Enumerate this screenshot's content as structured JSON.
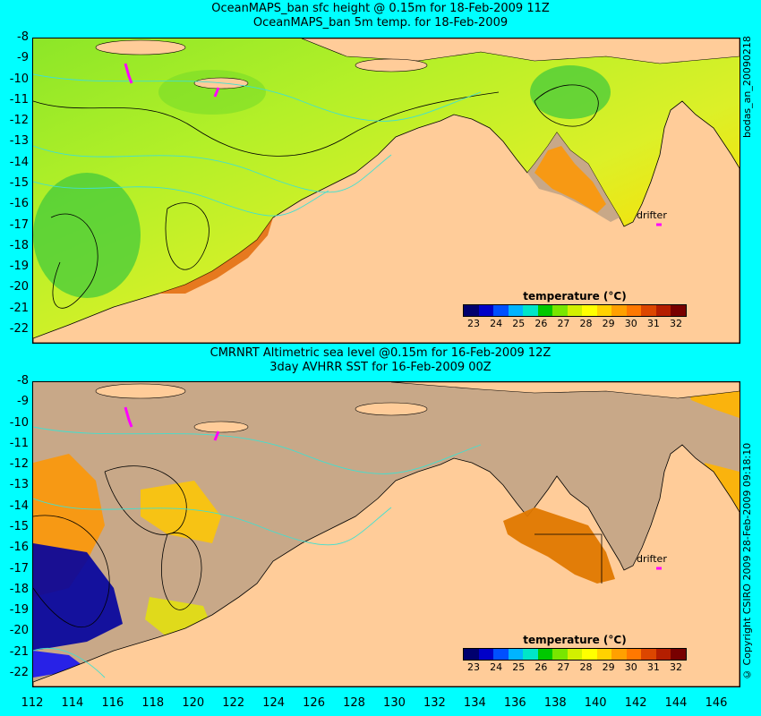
{
  "top_title_1": "OceanMAPS_ban sfc height @ 0.15m for 18-Feb-2009 11Z",
  "top_title_2": "OceanMAPS_ban 5m temp. for 18-Feb-2009",
  "bot_title_1": "CMRNRT Altimetric sea level  @0.15m  for 16-Feb-2009 12Z",
  "bot_title_2": "3day AVHRR SST for 16-Feb-2009 00Z",
  "top_side_label": "bodas_an_20090218",
  "bot_side_label": "© Copyright CSIRO 2009   28-Feb-2009 09:18:10",
  "drifter_label": "drifter",
  "colorbar": {
    "title": "temperature (°C)",
    "ticks": [
      "23",
      "24",
      "25",
      "26",
      "27",
      "28",
      "29",
      "30",
      "31",
      "32"
    ],
    "colors": [
      "#00006e",
      "#0000c8",
      "#0050ff",
      "#00b4ff",
      "#00e6c8",
      "#00c800",
      "#78e600",
      "#d2f000",
      "#ffff00",
      "#ffd200",
      "#ffa000",
      "#ff7800",
      "#dc4600",
      "#b41e00",
      "#780000"
    ]
  },
  "y_ticks": [
    "-8",
    "-9",
    "-10",
    "-11",
    "-12",
    "-13",
    "-14",
    "-15",
    "-16",
    "-17",
    "-18",
    "-19",
    "-20",
    "-21",
    "-22"
  ],
  "x_ticks": [
    "112",
    "114",
    "116",
    "118",
    "120",
    "122",
    "124",
    "126",
    "128",
    "130",
    "132",
    "134",
    "136",
    "138",
    "140",
    "142",
    "144",
    "146"
  ],
  "colors": {
    "background": "#00ffff",
    "land": "#ffcc99",
    "no_data": "#c8a888",
    "sea_model": "#c8f032",
    "contour": "#000000",
    "ssh_contour": "#40e0d0",
    "drifter": "#ff00ff"
  }
}
